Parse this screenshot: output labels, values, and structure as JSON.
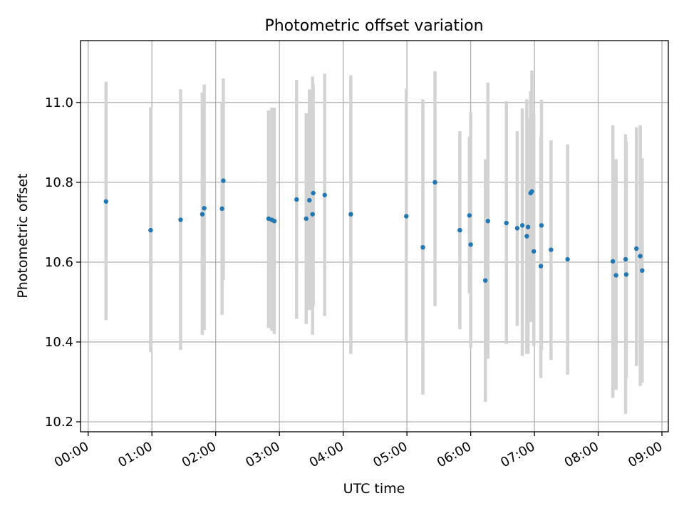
{
  "chart_data": {
    "type": "scatter",
    "title": "Photometric offset variation",
    "xlabel": "UTC time",
    "ylabel": "Photometric offset",
    "xlim": [
      -0.12,
      9.1
    ],
    "ylim": [
      10.175,
      11.155
    ],
    "x_ticks": [
      0,
      1,
      2,
      3,
      4,
      5,
      6,
      7,
      8,
      9
    ],
    "x_tick_labels": [
      "00:00",
      "01:00",
      "02:00",
      "03:00",
      "04:00",
      "05:00",
      "06:00",
      "07:00",
      "08:00",
      "09:00"
    ],
    "y_ticks": [
      10.2,
      10.4,
      10.6,
      10.8,
      11.0
    ],
    "y_tick_labels": [
      "10.2",
      "10.4",
      "10.6",
      "10.8",
      "11.0"
    ],
    "grid": true,
    "marker_color": "#1f77b4",
    "errorbar_color": "#d3d3d3",
    "series": [
      {
        "name": "offset",
        "x": [
          0.28,
          0.98,
          1.45,
          1.79,
          1.82,
          2.1,
          2.12,
          2.83,
          2.88,
          2.92,
          3.27,
          3.42,
          3.47,
          3.52,
          3.53,
          3.71,
          4.12,
          4.99,
          5.25,
          5.44,
          5.83,
          5.98,
          6.0,
          6.23,
          6.27,
          6.56,
          6.73,
          6.81,
          6.88,
          6.9,
          6.94,
          6.96,
          6.99,
          7.1,
          7.11,
          7.26,
          7.52,
          8.23,
          8.28,
          8.43,
          8.44,
          8.6,
          8.66,
          8.69
        ],
        "y": [
          10.752,
          10.68,
          10.706,
          10.72,
          10.735,
          10.734,
          10.804,
          10.709,
          10.706,
          10.703,
          10.757,
          10.709,
          10.755,
          10.72,
          10.773,
          10.768,
          10.72,
          10.715,
          10.637,
          10.8,
          10.68,
          10.717,
          10.644,
          10.554,
          10.703,
          10.698,
          10.685,
          10.692,
          10.665,
          10.688,
          10.773,
          10.777,
          10.627,
          10.59,
          10.692,
          10.631,
          10.607,
          10.602,
          10.567,
          10.607,
          10.569,
          10.634,
          10.615,
          10.579
        ],
        "y_low": [
          10.455,
          10.375,
          10.38,
          10.418,
          10.43,
          10.468,
          10.555,
          10.435,
          10.428,
          10.42,
          10.458,
          10.445,
          10.48,
          10.418,
          10.49,
          10.465,
          10.37,
          10.4,
          10.268,
          10.49,
          10.432,
          10.522,
          10.385,
          10.25,
          10.358,
          10.395,
          10.44,
          10.365,
          10.37,
          10.37,
          10.45,
          10.48,
          10.39,
          10.31,
          10.38,
          10.355,
          10.318,
          10.26,
          10.28,
          10.22,
          10.31,
          10.34,
          10.29,
          10.298
        ],
        "y_high": [
          11.052,
          10.988,
          11.033,
          11.025,
          11.045,
          11.0,
          11.06,
          10.98,
          10.987,
          10.987,
          11.057,
          10.973,
          11.033,
          11.065,
          11.045,
          11.072,
          11.068,
          11.035,
          11.008,
          11.078,
          10.928,
          10.915,
          10.975,
          10.858,
          11.05,
          11.003,
          10.928,
          10.985,
          11.008,
          10.96,
          11.028,
          11.08,
          10.973,
          10.915,
          11.007,
          10.905,
          10.895,
          10.943,
          10.858,
          10.92,
          10.902,
          10.938,
          10.943,
          10.86
        ]
      }
    ]
  }
}
